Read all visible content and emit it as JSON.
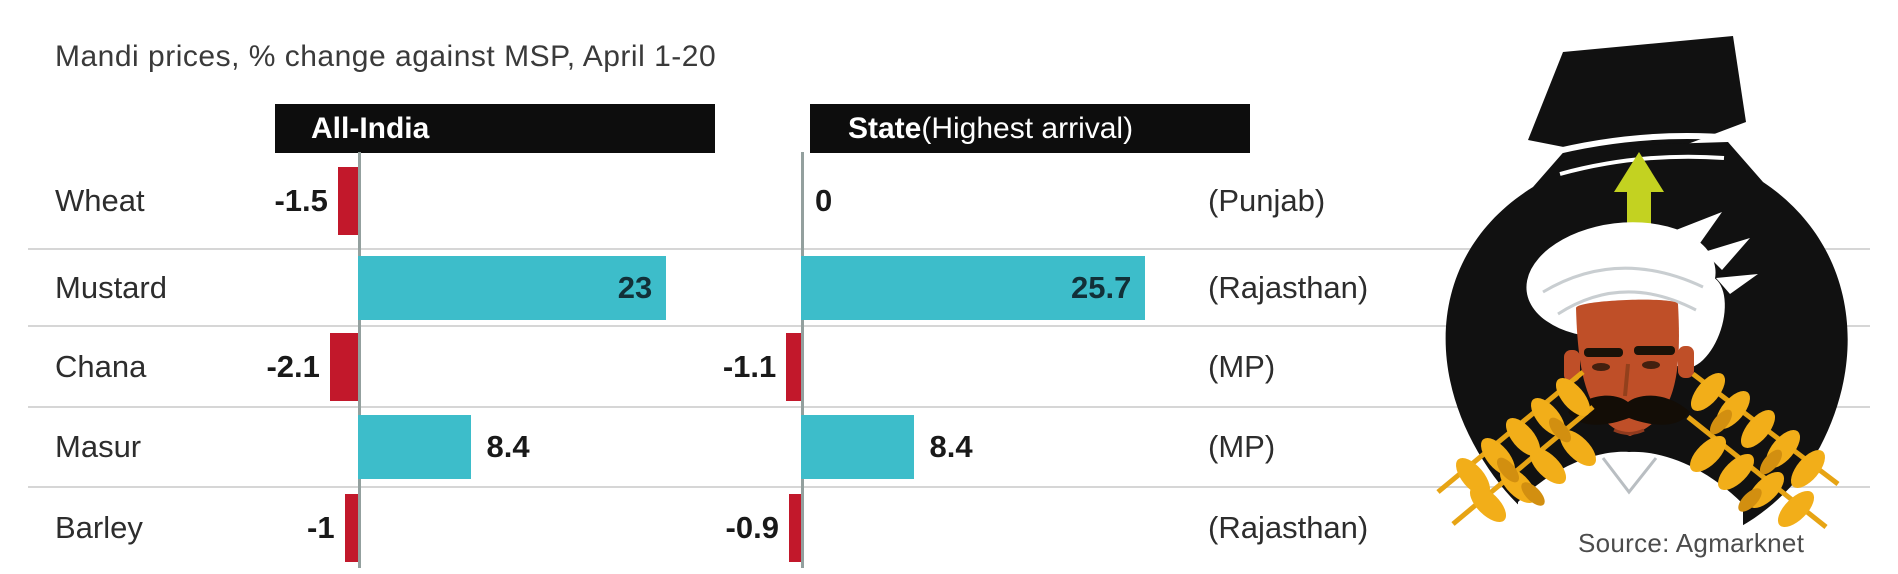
{
  "title": "Mandi prices, % change against MSP, April 1-20",
  "headers": {
    "all_india": "All-India",
    "state_bold": "State",
    "state_note": " (Highest arrival)"
  },
  "source": "Source: Agmarknet",
  "chart_data": {
    "type": "bar",
    "orientation": "horizontal",
    "title": "Mandi prices, % change against MSP, April 1-20",
    "unit": "% change against MSP",
    "categories": [
      "Wheat",
      "Mustard",
      "Chana",
      "Masur",
      "Barley"
    ],
    "series": [
      {
        "name": "All-India",
        "values": [
          -1.5,
          23,
          -2.1,
          8.4,
          -1
        ],
        "labels": [
          "-1.5",
          "23",
          "-2.1",
          "8.4",
          "-1"
        ]
      },
      {
        "name": "State (Highest arrival)",
        "values": [
          0,
          25.7,
          -1.1,
          8.4,
          -0.9
        ],
        "labels": [
          "0",
          "25.7",
          "-1.1",
          "8.4",
          "-0.9"
        ],
        "states": [
          "(Punjab)",
          "(Rajasthan)",
          "(MP)",
          "(MP)",
          "(Rajasthan)"
        ]
      }
    ],
    "colors": {
      "positive": "#3dbdca",
      "negative": "#c2182b",
      "inside_label": "#123038",
      "axis": "#93a09e",
      "separator": "#d6d6d6"
    },
    "xlim": [
      -3,
      27
    ],
    "grid": "row-separators",
    "legend_position": "top-header-boxes"
  }
}
